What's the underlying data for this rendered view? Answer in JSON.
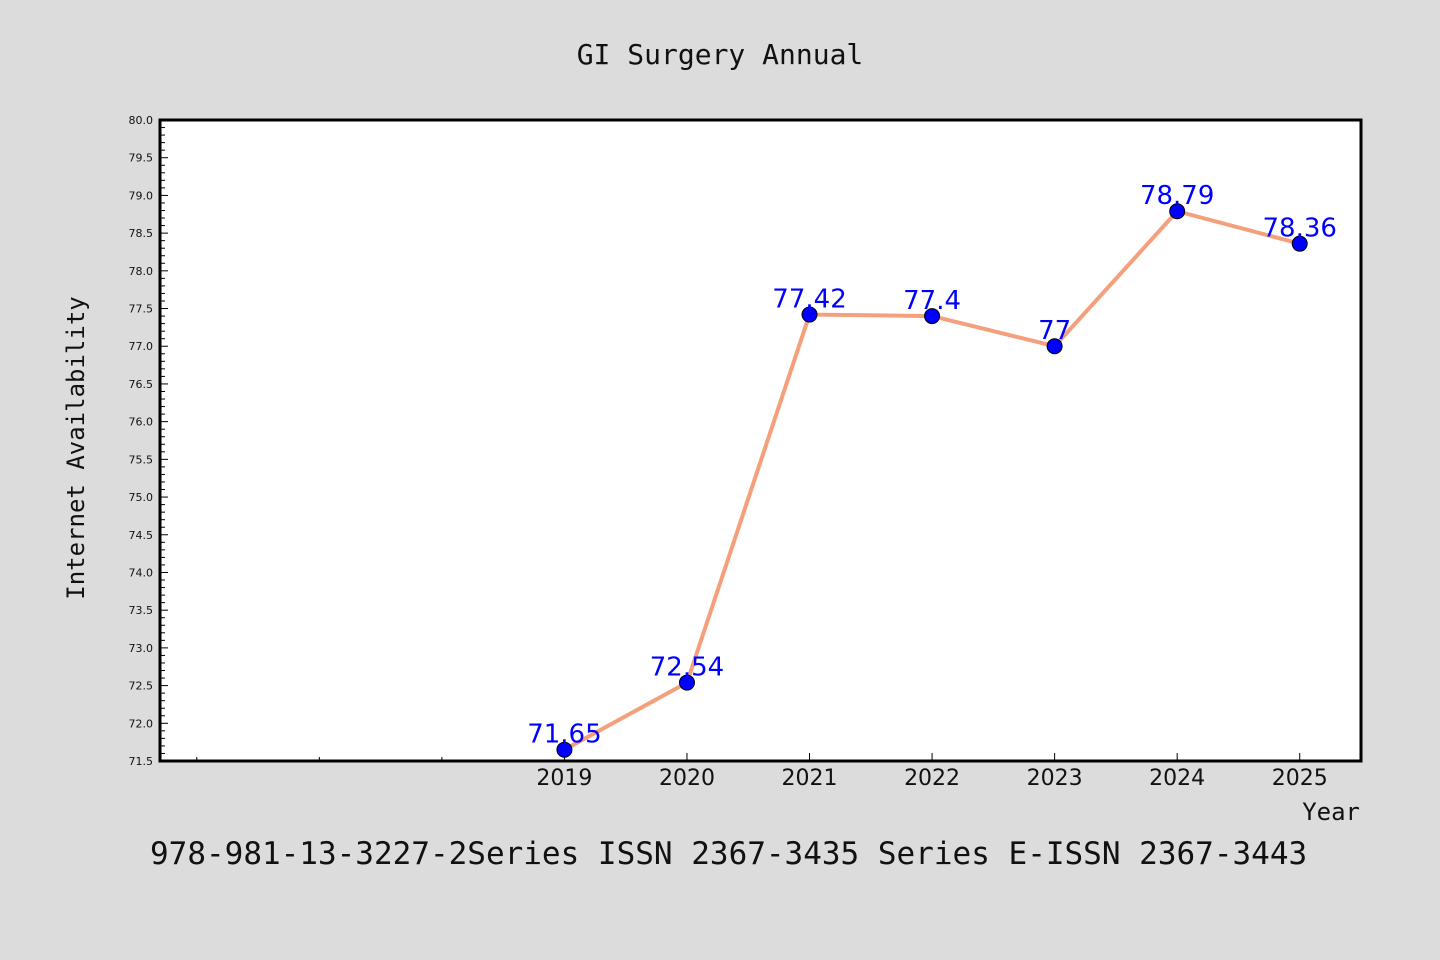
{
  "chart_data": {
    "type": "line",
    "title": "GI Surgery Annual",
    "xlabel": "Year",
    "ylabel": "Internet Availability",
    "x": [
      "2019",
      "2020",
      "2021",
      "2022",
      "2023",
      "2024",
      "2025"
    ],
    "values": [
      71.65,
      72.54,
      77.42,
      77.4,
      77,
      78.79,
      78.36
    ],
    "data_labels": [
      "71.65",
      "72.54",
      "77.42",
      "77.4",
      "77",
      "78.79",
      "78.36"
    ],
    "ylim": [
      71.5,
      80.0
    ],
    "xlim": [
      2015.7,
      2025.5
    ],
    "yticks": [
      "71.5",
      "72.0",
      "72.5",
      "73.0",
      "73.5",
      "74.0",
      "74.5",
      "75.0",
      "75.5",
      "76.0",
      "76.5",
      "77.0",
      "77.5",
      "78.0",
      "78.5",
      "79.0",
      "79.5",
      "80.0"
    ],
    "grid": false,
    "legend": "none"
  },
  "footer_text": "978-981-13-3227-2Series ISSN 2367-3435 Series E-ISSN 2367-3443",
  "colors": {
    "background": "#dcdcdc",
    "plot_background": "#ffffff",
    "line": "#f4a07c",
    "marker": "#0000ff",
    "data_label": "#0000ff",
    "axis": "#000000"
  }
}
